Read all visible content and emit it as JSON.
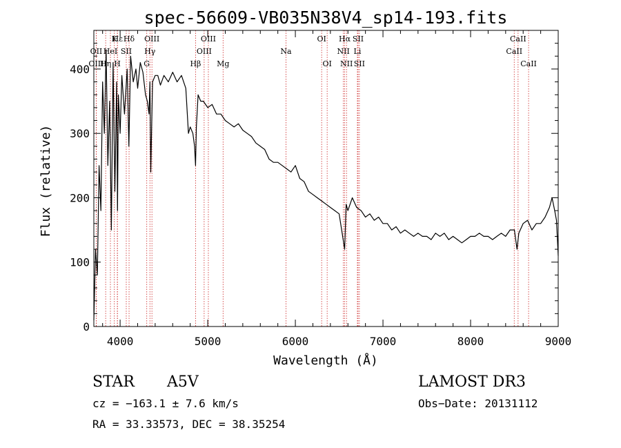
{
  "chart_data": {
    "type": "line",
    "title": "spec-56609-VB035N38V4_sp14-193.fits",
    "xlabel": "Wavelength (Å)",
    "ylabel": "Flux (relative)",
    "xlim": [
      3700,
      9000
    ],
    "ylim": [
      0,
      460
    ],
    "xticks": [
      4000,
      5000,
      6000,
      7000,
      8000,
      9000
    ],
    "xtick_labels": [
      "4000",
      "5000",
      "6000",
      "7000",
      "8000",
      "9000"
    ],
    "yticks": [
      0,
      100,
      200,
      300,
      400
    ],
    "ytick_labels": [
      "0",
      "100",
      "200",
      "300",
      "400"
    ],
    "grid": false,
    "spectrum": {
      "x": [
        3700,
        3720,
        3740,
        3760,
        3780,
        3800,
        3820,
        3840,
        3860,
        3880,
        3900,
        3920,
        3940,
        3960,
        3970,
        3980,
        4000,
        4020,
        4050,
        4080,
        4100,
        4120,
        4150,
        4180,
        4200,
        4230,
        4260,
        4290,
        4310,
        4330,
        4340,
        4350,
        4370,
        4400,
        4430,
        4460,
        4500,
        4550,
        4600,
        4650,
        4700,
        4750,
        4780,
        4800,
        4830,
        4850,
        4861,
        4870,
        4890,
        4920,
        4950,
        5000,
        5050,
        5100,
        5150,
        5200,
        5250,
        5300,
        5350,
        5400,
        5450,
        5500,
        5550,
        5600,
        5650,
        5700,
        5750,
        5800,
        5850,
        5900,
        5950,
        6000,
        6050,
        6100,
        6150,
        6200,
        6250,
        6300,
        6350,
        6400,
        6450,
        6500,
        6540,
        6563,
        6580,
        6600,
        6650,
        6700,
        6750,
        6800,
        6850,
        6900,
        6950,
        7000,
        7050,
        7100,
        7150,
        7200,
        7250,
        7300,
        7350,
        7400,
        7450,
        7500,
        7550,
        7600,
        7650,
        7700,
        7750,
        7800,
        7850,
        7900,
        7950,
        8000,
        8050,
        8100,
        8150,
        8200,
        8250,
        8300,
        8350,
        8400,
        8450,
        8500,
        8530,
        8550,
        8600,
        8650,
        8700,
        8750,
        8800,
        8850,
        8900,
        8930,
        8960,
        8980,
        9000
      ],
      "y": [
        10,
        120,
        80,
        250,
        180,
        380,
        300,
        430,
        250,
        350,
        150,
        410,
        210,
        380,
        180,
        360,
        300,
        390,
        330,
        400,
        280,
        420,
        380,
        400,
        370,
        410,
        395,
        360,
        350,
        330,
        380,
        240,
        380,
        390,
        390,
        375,
        390,
        380,
        395,
        380,
        390,
        370,
        300,
        310,
        300,
        280,
        250,
        310,
        360,
        350,
        350,
        340,
        345,
        330,
        330,
        320,
        315,
        310,
        315,
        305,
        300,
        295,
        285,
        280,
        275,
        260,
        255,
        255,
        250,
        245,
        240,
        250,
        230,
        225,
        210,
        205,
        200,
        195,
        190,
        185,
        180,
        175,
        140,
        120,
        190,
        180,
        200,
        185,
        180,
        170,
        175,
        165,
        170,
        160,
        160,
        150,
        155,
        145,
        150,
        145,
        140,
        145,
        140,
        140,
        135,
        145,
        140,
        145,
        135,
        140,
        135,
        130,
        135,
        140,
        140,
        145,
        140,
        140,
        135,
        140,
        145,
        140,
        150,
        150,
        120,
        145,
        160,
        165,
        150,
        160,
        160,
        170,
        185,
        200,
        180,
        165,
        110
      ]
    },
    "lines": [
      {
        "name": "Hε",
        "x": 3970,
        "row": 0
      },
      {
        "name": "K",
        "x": 3934,
        "row": 0
      },
      {
        "name": "Hδ",
        "x": 4102,
        "row": 0
      },
      {
        "name": "OIII",
        "x": 4363,
        "row": 0
      },
      {
        "name": "OIII",
        "x": 5007,
        "row": 0
      },
      {
        "name": "OI",
        "x": 6300,
        "row": 0
      },
      {
        "name": "Hα",
        "x": 6563,
        "row": 0
      },
      {
        "name": "SII",
        "x": 6716,
        "row": 0
      },
      {
        "name": "CaII",
        "x": 8542,
        "row": 0
      },
      {
        "name": "OII",
        "x": 3727,
        "row": 1
      },
      {
        "name": "HeI",
        "x": 3889,
        "row": 1
      },
      {
        "name": "SII",
        "x": 4070,
        "row": 1
      },
      {
        "name": "Hγ",
        "x": 4340,
        "row": 1
      },
      {
        "name": "OIII",
        "x": 4959,
        "row": 1
      },
      {
        "name": "Na",
        "x": 5893,
        "row": 1
      },
      {
        "name": "NII",
        "x": 6548,
        "row": 1
      },
      {
        "name": "Li",
        "x": 6708,
        "row": 1
      },
      {
        "name": "CaII",
        "x": 8498,
        "row": 1
      },
      {
        "name": "OIII",
        "x": 3727,
        "row": 2
      },
      {
        "name": "Hη",
        "x": 3835,
        "row": 2
      },
      {
        "name": "H",
        "x": 3968,
        "row": 2
      },
      {
        "name": "G",
        "x": 4304,
        "row": 2
      },
      {
        "name": "Hβ",
        "x": 4861,
        "row": 2
      },
      {
        "name": "Mg",
        "x": 5175,
        "row": 2
      },
      {
        "name": "OI",
        "x": 6363,
        "row": 2
      },
      {
        "name": "NII",
        "x": 6584,
        "row": 2
      },
      {
        "name": "SII",
        "x": 6731,
        "row": 2
      },
      {
        "name": "CaII",
        "x": 8662,
        "row": 2
      }
    ],
    "annotations": {
      "object_class": "STAR",
      "subclass": "A5V",
      "survey": "LAMOST DR3",
      "velocity": "cz = −163.1 ± 7.6 km/s",
      "obs_date": "Obs−Date: 20131112",
      "coords": "RA =  33.33573, DEC =  38.35254"
    }
  }
}
